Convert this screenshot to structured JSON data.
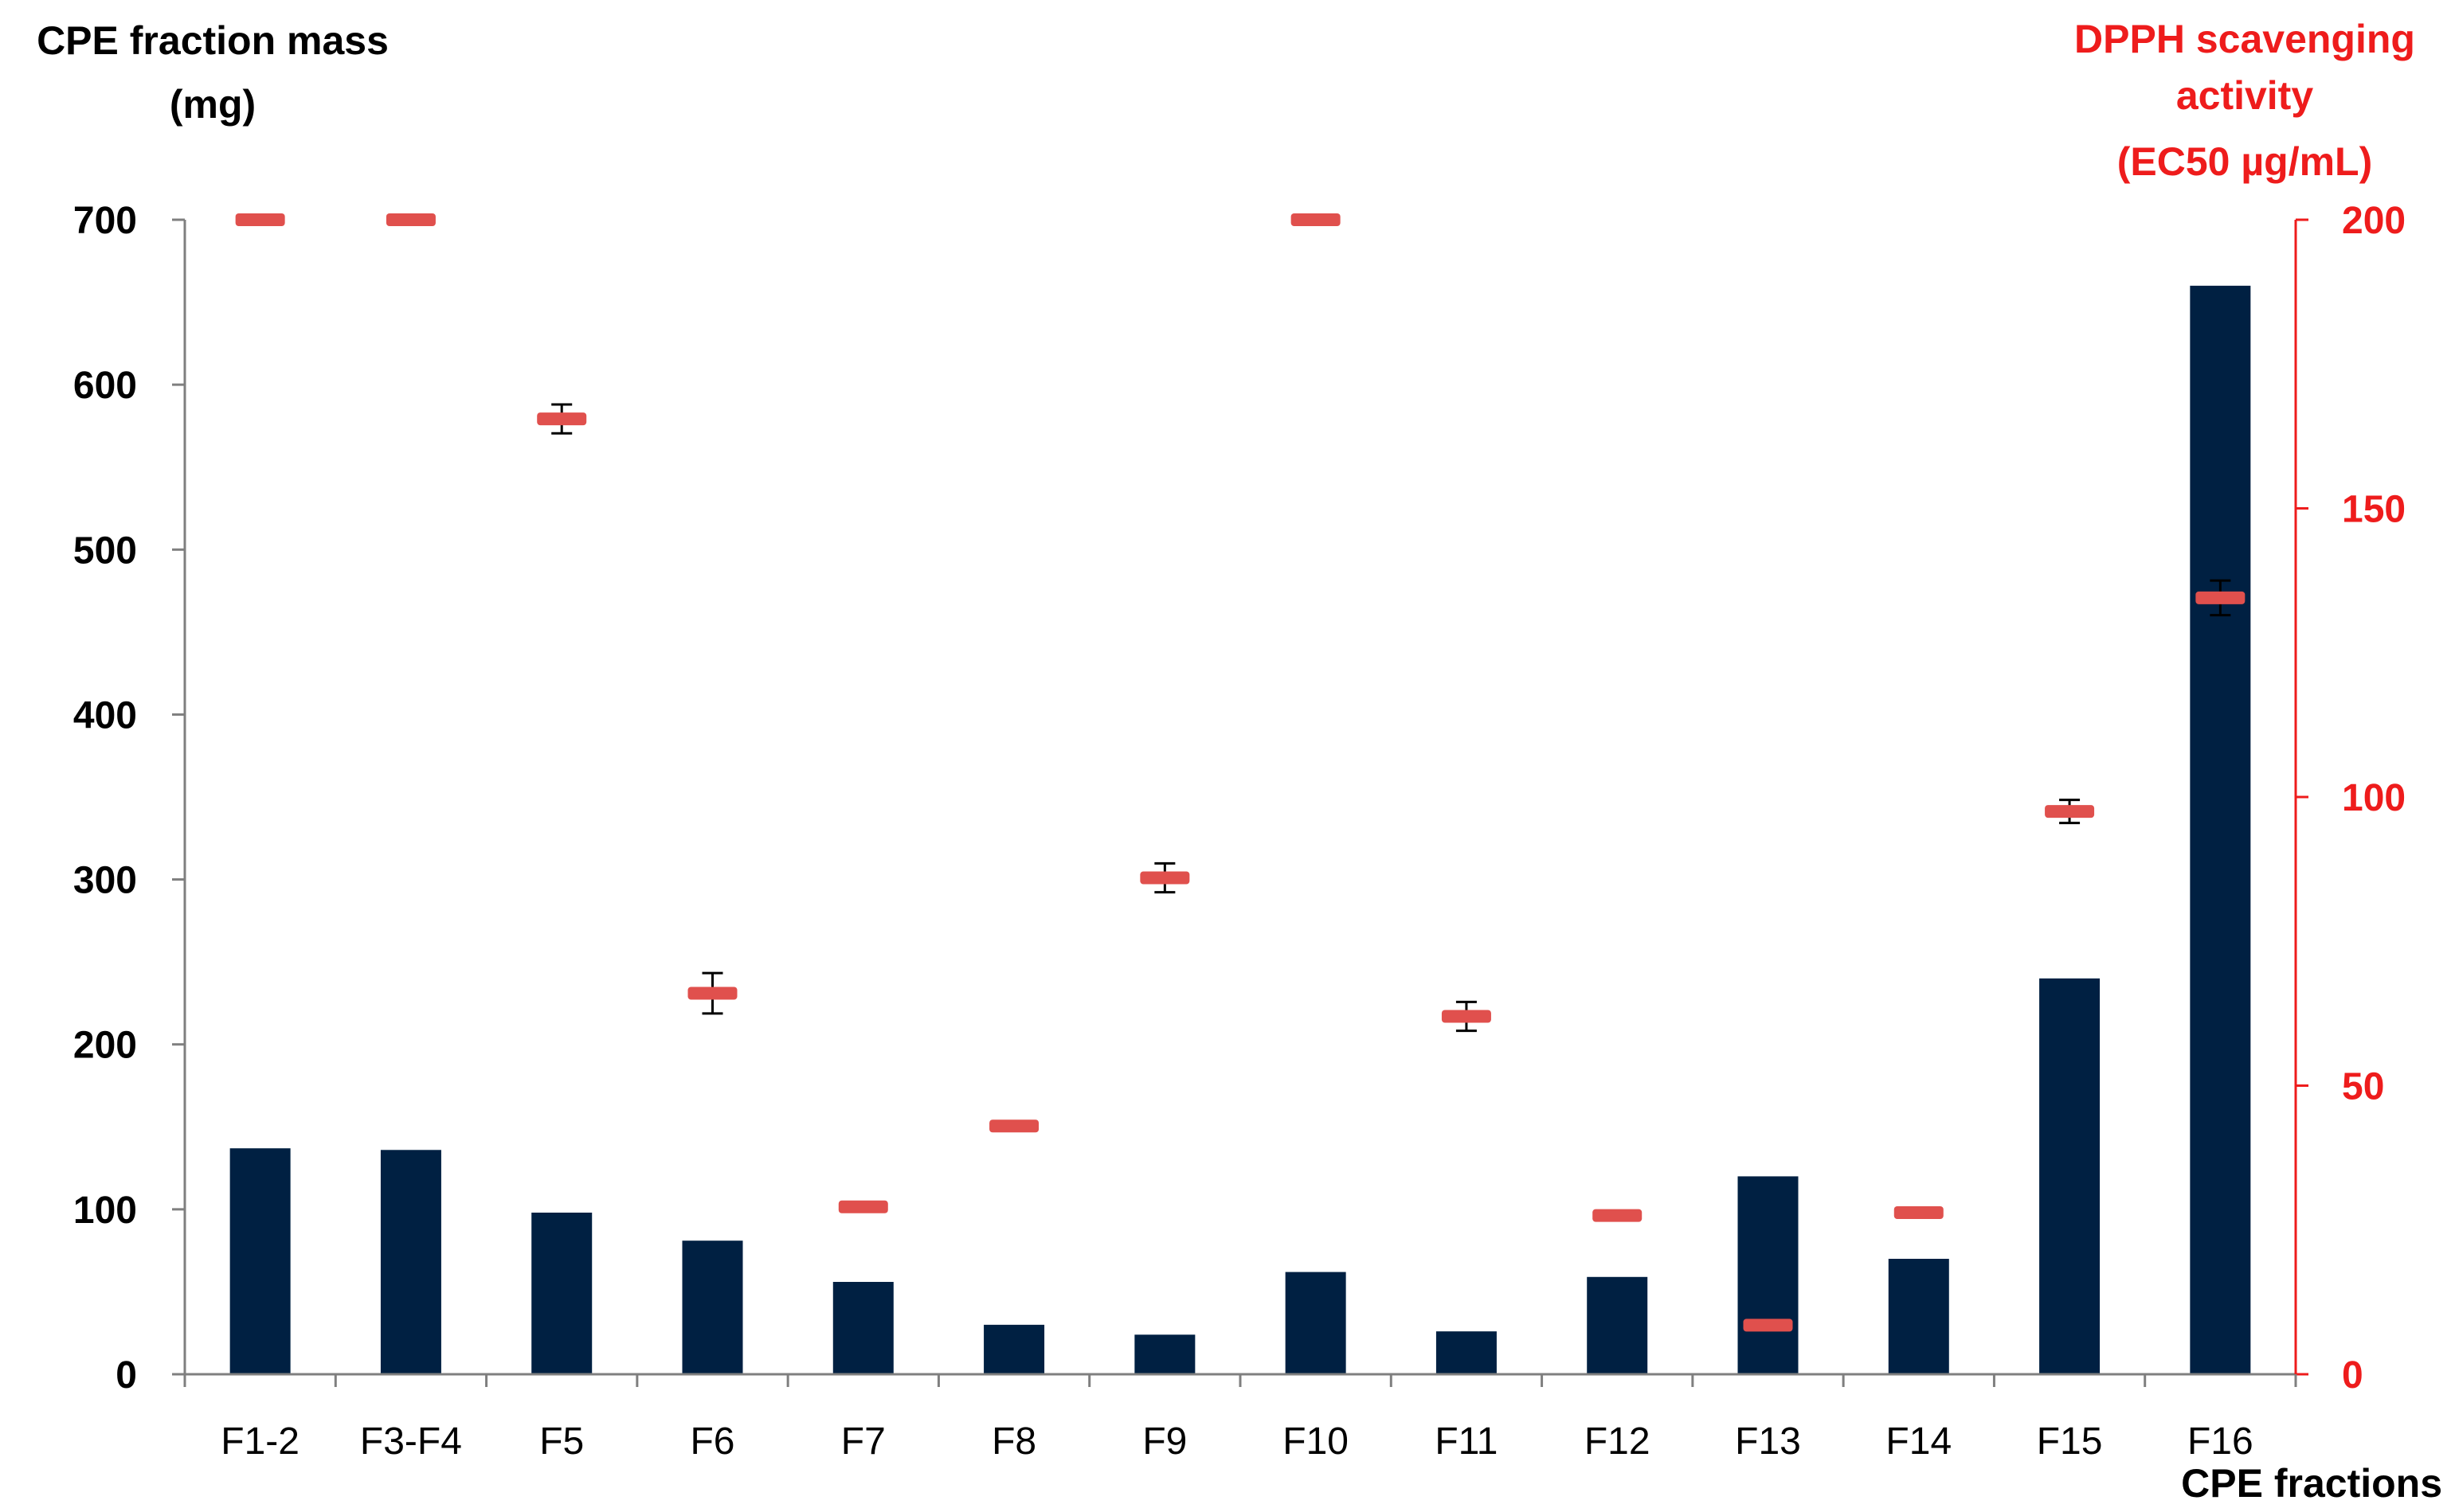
{
  "chart_data": {
    "type": "bar",
    "categories": [
      "F1-2",
      "F3-F4",
      "F5",
      "F6",
      "F7",
      "F8",
      "F9",
      "F10",
      "F11",
      "F12",
      "F13",
      "F14",
      "F15",
      "F16"
    ],
    "series": [
      {
        "axis": "left",
        "chart_type": "bar",
        "values": [
          137,
          136,
          98,
          81,
          56,
          30,
          24,
          62,
          26,
          59,
          120,
          70,
          240,
          660
        ]
      },
      {
        "axis": "right",
        "chart_type": "scatter",
        "values": [
          200,
          200,
          165.5,
          66,
          29,
          43,
          86,
          200,
          62,
          27.5,
          8.5,
          28,
          97.5,
          134.5
        ],
        "error": [
          null,
          null,
          2.5,
          3.5,
          null,
          null,
          2.5,
          null,
          2.5,
          null,
          null,
          null,
          2,
          3
        ]
      }
    ],
    "y_left": {
      "title_lines": [
        "CPE fraction mass",
        "(mg)"
      ],
      "ylim": [
        0,
        700
      ],
      "ticks": [
        "0",
        "100",
        "200",
        "300",
        "400",
        "500",
        "600",
        "700"
      ]
    },
    "y_right": {
      "title_lines": [
        "DPPH scavenging",
        "activity",
        "(EC50 µg/mL)"
      ],
      "ylim": [
        0,
        200
      ],
      "ticks": [
        "0",
        "50",
        "100",
        "150",
        "200"
      ]
    },
    "xlabel": "CPE fractions",
    "grid": false,
    "legend": "none",
    "colors": {
      "bar": "#002042",
      "marker": "#e0504d",
      "right_axis": "#ee1c1c",
      "axis_line": "#7f7f7f",
      "error_bar": "#000000"
    }
  }
}
